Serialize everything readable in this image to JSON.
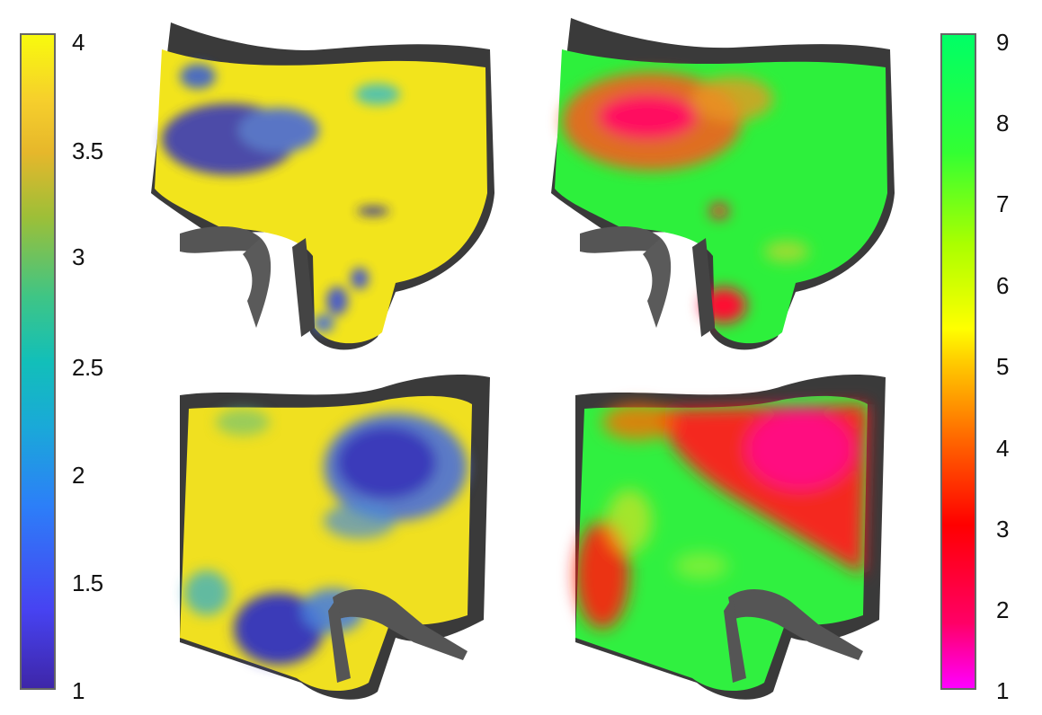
{
  "colorbar_left": {
    "min": 1,
    "max": 4,
    "ticks": [
      "4",
      "3.5",
      "3",
      "2.5",
      "2",
      "1.5",
      "1"
    ],
    "tick_values": [
      4,
      3.5,
      3,
      2.5,
      2,
      1.5,
      1
    ],
    "colormap": "parula-like (blue to yellow)"
  },
  "colorbar_right": {
    "min": 1,
    "max": 9,
    "ticks": [
      "9",
      "8",
      "7",
      "6",
      "5",
      "4",
      "3",
      "2",
      "1"
    ],
    "tick_values": [
      9,
      8,
      7,
      6,
      5,
      4,
      3,
      2,
      1
    ],
    "colormap": "magenta-red-yellow-green"
  },
  "panels": [
    {
      "name": "top-left",
      "dominant_color": "#f2e41c"
    },
    {
      "name": "top-right",
      "dominant_color": "#2df03c"
    },
    {
      "name": "bottom-left",
      "dominant_color": "#f0e020"
    },
    {
      "name": "bottom-right",
      "dominant_color": "#30f040"
    }
  ]
}
